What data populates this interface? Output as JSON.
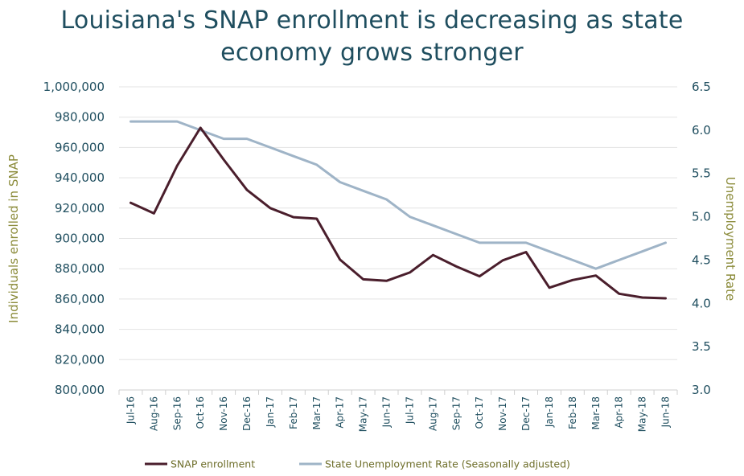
{
  "chart_data": {
    "type": "line",
    "title_line1": "Louisiana's SNAP enrollment is decreasing as state",
    "title_line2": "economy grows stronger",
    "ylabel": "Individuals enrolled in SNAP",
    "y2label": "Unemployment Rate",
    "categories": [
      "Jul-16",
      "Aug-16",
      "Sep-16",
      "Oct-16",
      "Nov-16",
      "Dec-16",
      "Jan-17",
      "Feb-17",
      "Mar-17",
      "Apr-17",
      "May-17",
      "Jun-17",
      "Jul-17",
      "Aug-17",
      "Sep-17",
      "Oct-17",
      "Nov-17",
      "Dec-17",
      "Jan-18",
      "Feb-18",
      "Mar-18",
      "Apr-18",
      "May-18",
      "Jun-18"
    ],
    "ylim": [
      800000,
      1000000
    ],
    "y2lim": [
      3.0,
      6.5
    ],
    "yticks": [
      "800,000",
      "820,000",
      "840,000",
      "860,000",
      "880,000",
      "900,000",
      "920,000",
      "940,000",
      "960,000",
      "980,000",
      "1,000,000"
    ],
    "y2ticks": [
      "3.0",
      "3.5",
      "4.0",
      "4.5",
      "5.0",
      "5.5",
      "6.0",
      "6.5"
    ],
    "grid": true,
    "legend_position": "bottom",
    "series": [
      {
        "name": "SNAP enrollment",
        "axis": "left",
        "color": "#4a1e2c",
        "values": [
          923500,
          916500,
          948000,
          973000,
          952000,
          932000,
          920000,
          914000,
          913000,
          886000,
          873000,
          872000,
          877500,
          889000,
          881500,
          875000,
          885500,
          891000,
          867500,
          872500,
          875500,
          863500,
          861000,
          860500
        ]
      },
      {
        "name": "State Unemployment Rate (Seasonally adjusted)",
        "axis": "right",
        "color": "#9fb4c7",
        "values": [
          6.1,
          6.1,
          6.1,
          6.0,
          5.9,
          5.9,
          5.8,
          5.7,
          5.6,
          5.4,
          5.3,
          5.2,
          5.0,
          4.9,
          4.8,
          4.7,
          4.7,
          4.7,
          4.6,
          4.5,
          4.4,
          4.5,
          4.6,
          4.7
        ]
      }
    ]
  }
}
